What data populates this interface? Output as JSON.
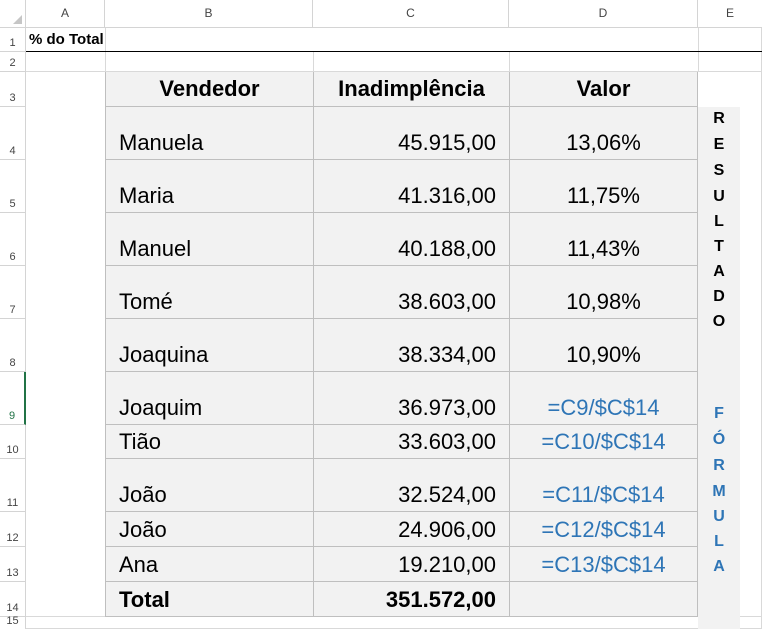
{
  "sheet": {
    "columns": [
      "A",
      "B",
      "C",
      "D",
      "E"
    ],
    "rows": [
      "1",
      "2",
      "3",
      "4",
      "5",
      "6",
      "7",
      "8",
      "9",
      "10",
      "11",
      "12",
      "13",
      "14",
      "15"
    ],
    "selected_row": "9",
    "title_cell": "% do Total"
  },
  "table": {
    "headers": {
      "vendedor": "Vendedor",
      "inadimplencia": "Inadimplência",
      "valor": "Valor"
    },
    "rows": [
      {
        "name": "Manuela",
        "amount": "45.915,00",
        "value": "13,06%"
      },
      {
        "name": "Maria",
        "amount": "41.316,00",
        "value": "11,75%"
      },
      {
        "name": "Manuel",
        "amount": "40.188,00",
        "value": "11,43%"
      },
      {
        "name": "Tomé",
        "amount": "38.603,00",
        "value": "10,98%"
      },
      {
        "name": "Joaquina",
        "amount": "38.334,00",
        "value": "10,90%"
      },
      {
        "name": "Joaquim",
        "amount": "36.973,00",
        "value": "=C9/$C$14"
      },
      {
        "name": "Tião",
        "amount": "33.603,00",
        "value": "=C10/$C$14"
      },
      {
        "name": "João",
        "amount": "32.524,00",
        "value": "=C11/$C$14"
      },
      {
        "name": "João",
        "amount": "24.906,00",
        "value": "=C12/$C$14"
      },
      {
        "name": "Ana",
        "amount": "19.210,00",
        "value": "=C13/$C$14"
      }
    ],
    "total_label": "Total",
    "total_amount": "351.572,00"
  },
  "side_labels": {
    "resultado": [
      "R",
      "E",
      "S",
      "U",
      "L",
      "T",
      "A",
      "D",
      "O"
    ],
    "formula": [
      "F",
      "Ó",
      "R",
      "M",
      "U",
      "L",
      "A"
    ]
  },
  "colors": {
    "formula_text": "#2e75b6",
    "table_fill": "#f2f2f2",
    "selection": "#217346"
  }
}
